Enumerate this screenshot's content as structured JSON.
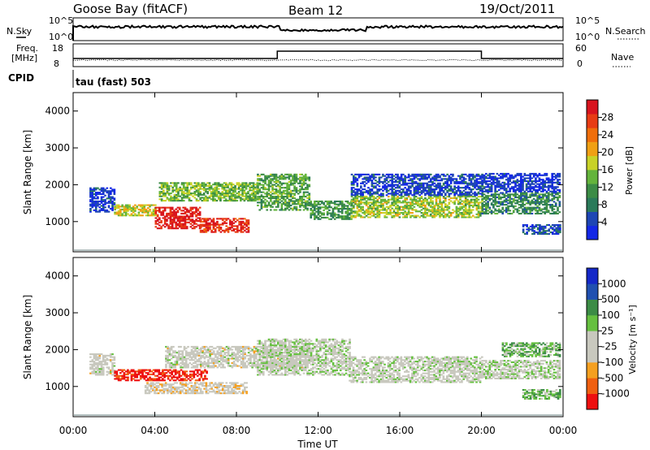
{
  "header": {
    "station": "Goose Bay (fitACF)",
    "beam": "Beam 12",
    "date": "19/Oct/2011"
  },
  "top_panels": {
    "nsky_label": "N.Sky",
    "nsky_ticks": [
      "10^5",
      "10^0"
    ],
    "nsearch_label": "N.Search",
    "nsearch_ticks": [
      "10^5",
      "10^0"
    ],
    "freq_label_1": "Freq.",
    "freq_label_2": "[MHz]",
    "freq_ticks": [
      "18",
      "8"
    ],
    "nave_label": "Nave",
    "nave_ticks": [
      "60",
      "0"
    ],
    "cpid_label": "CPID",
    "cpid_value": "tau (fast) 503"
  },
  "chart_data": [
    {
      "type": "heatmap",
      "name": "power",
      "ylabel": "Slant Range [km]",
      "yticks": [
        1000,
        2000,
        3000,
        4000
      ],
      "ylim": [
        180,
        4500
      ],
      "xlim": [
        0,
        24
      ],
      "colorbar_label": "Power [dB]",
      "colorbar_ticks": [
        "4",
        "8",
        "12",
        "16",
        "20",
        "24",
        "28"
      ],
      "colorscale": [
        "#1428e6",
        "#1e46b4",
        "#2a7a5a",
        "#3c8c46",
        "#64b43c",
        "#c8d228",
        "#f0a014",
        "#f06e0a",
        "#e83c14",
        "#d8141e"
      ],
      "bands": [
        {
          "t0": 0.8,
          "t1": 2.0,
          "r0": 1250,
          "r1": 1900,
          "v": 0.1
        },
        {
          "t0": 2.0,
          "t1": 4.0,
          "r0": 1150,
          "r1": 1450,
          "v": 0.55
        },
        {
          "t0": 4.0,
          "t1": 6.2,
          "r0": 800,
          "r1": 1400,
          "v": 0.95
        },
        {
          "t0": 6.2,
          "t1": 8.6,
          "r0": 700,
          "r1": 1100,
          "v": 0.9
        },
        {
          "t0": 4.2,
          "t1": 9.0,
          "r0": 1550,
          "r1": 2050,
          "v": 0.45
        },
        {
          "t0": 9.0,
          "t1": 11.6,
          "r0": 1300,
          "r1": 2300,
          "v": 0.4
        },
        {
          "t0": 11.6,
          "t1": 13.6,
          "r0": 1050,
          "r1": 1550,
          "v": 0.35
        },
        {
          "t0": 13.6,
          "t1": 20.0,
          "r0": 1100,
          "r1": 1700,
          "v": 0.5
        },
        {
          "t0": 13.6,
          "t1": 20.0,
          "r0": 1700,
          "r1": 2300,
          "v": 0.12
        },
        {
          "t0": 20.0,
          "t1": 23.8,
          "r0": 1200,
          "r1": 1800,
          "v": 0.3
        },
        {
          "t0": 20.0,
          "t1": 23.8,
          "r0": 1800,
          "r1": 2300,
          "v": 0.1
        },
        {
          "t0": 22.0,
          "t1": 23.8,
          "r0": 650,
          "r1": 900,
          "v": 0.15
        }
      ]
    },
    {
      "type": "heatmap",
      "name": "velocity",
      "ylabel": "Slant Range [km]",
      "xlabel": "Time UT",
      "xticks": [
        "00:00",
        "04:00",
        "08:00",
        "12:00",
        "16:00",
        "20:00",
        "00:00"
      ],
      "yticks": [
        1000,
        2000,
        3000,
        4000
      ],
      "ylim": [
        180,
        4500
      ],
      "xlim": [
        0,
        24
      ],
      "colorbar_label": "Velocity [m s⁻¹]",
      "colorbar_ticks": [
        "-1000",
        "-500",
        "-100",
        "-25",
        "25",
        "100",
        "500",
        "1000"
      ],
      "colorscale": [
        "#ee1010",
        "#f06010",
        "#f5a020",
        "#c8c8be",
        "#c8c8be",
        "#66c040",
        "#3c8c46",
        "#2050b0",
        "#1428c8"
      ],
      "bands": [
        {
          "t0": 0.8,
          "t1": 2.0,
          "r0": 1300,
          "r1": 1900,
          "v": 0.45
        },
        {
          "t0": 2.0,
          "t1": 6.5,
          "r0": 1150,
          "r1": 1450,
          "v": 0.05
        },
        {
          "t0": 3.5,
          "t1": 8.5,
          "r0": 800,
          "r1": 1100,
          "v": 0.4
        },
        {
          "t0": 4.5,
          "t1": 11.5,
          "r0": 1500,
          "r1": 2100,
          "v": 0.45
        },
        {
          "t0": 9.0,
          "t1": 13.5,
          "r0": 1300,
          "r1": 2300,
          "v": 0.5
        },
        {
          "t0": 13.5,
          "t1": 20.0,
          "r0": 1100,
          "r1": 1800,
          "v": 0.48
        },
        {
          "t0": 20.0,
          "t1": 23.8,
          "r0": 1200,
          "r1": 1700,
          "v": 0.5
        },
        {
          "t0": 21.0,
          "t1": 23.8,
          "r0": 1800,
          "r1": 2200,
          "v": 0.62
        },
        {
          "t0": 22.0,
          "t1": 23.8,
          "r0": 650,
          "r1": 900,
          "v": 0.62
        }
      ]
    }
  ]
}
